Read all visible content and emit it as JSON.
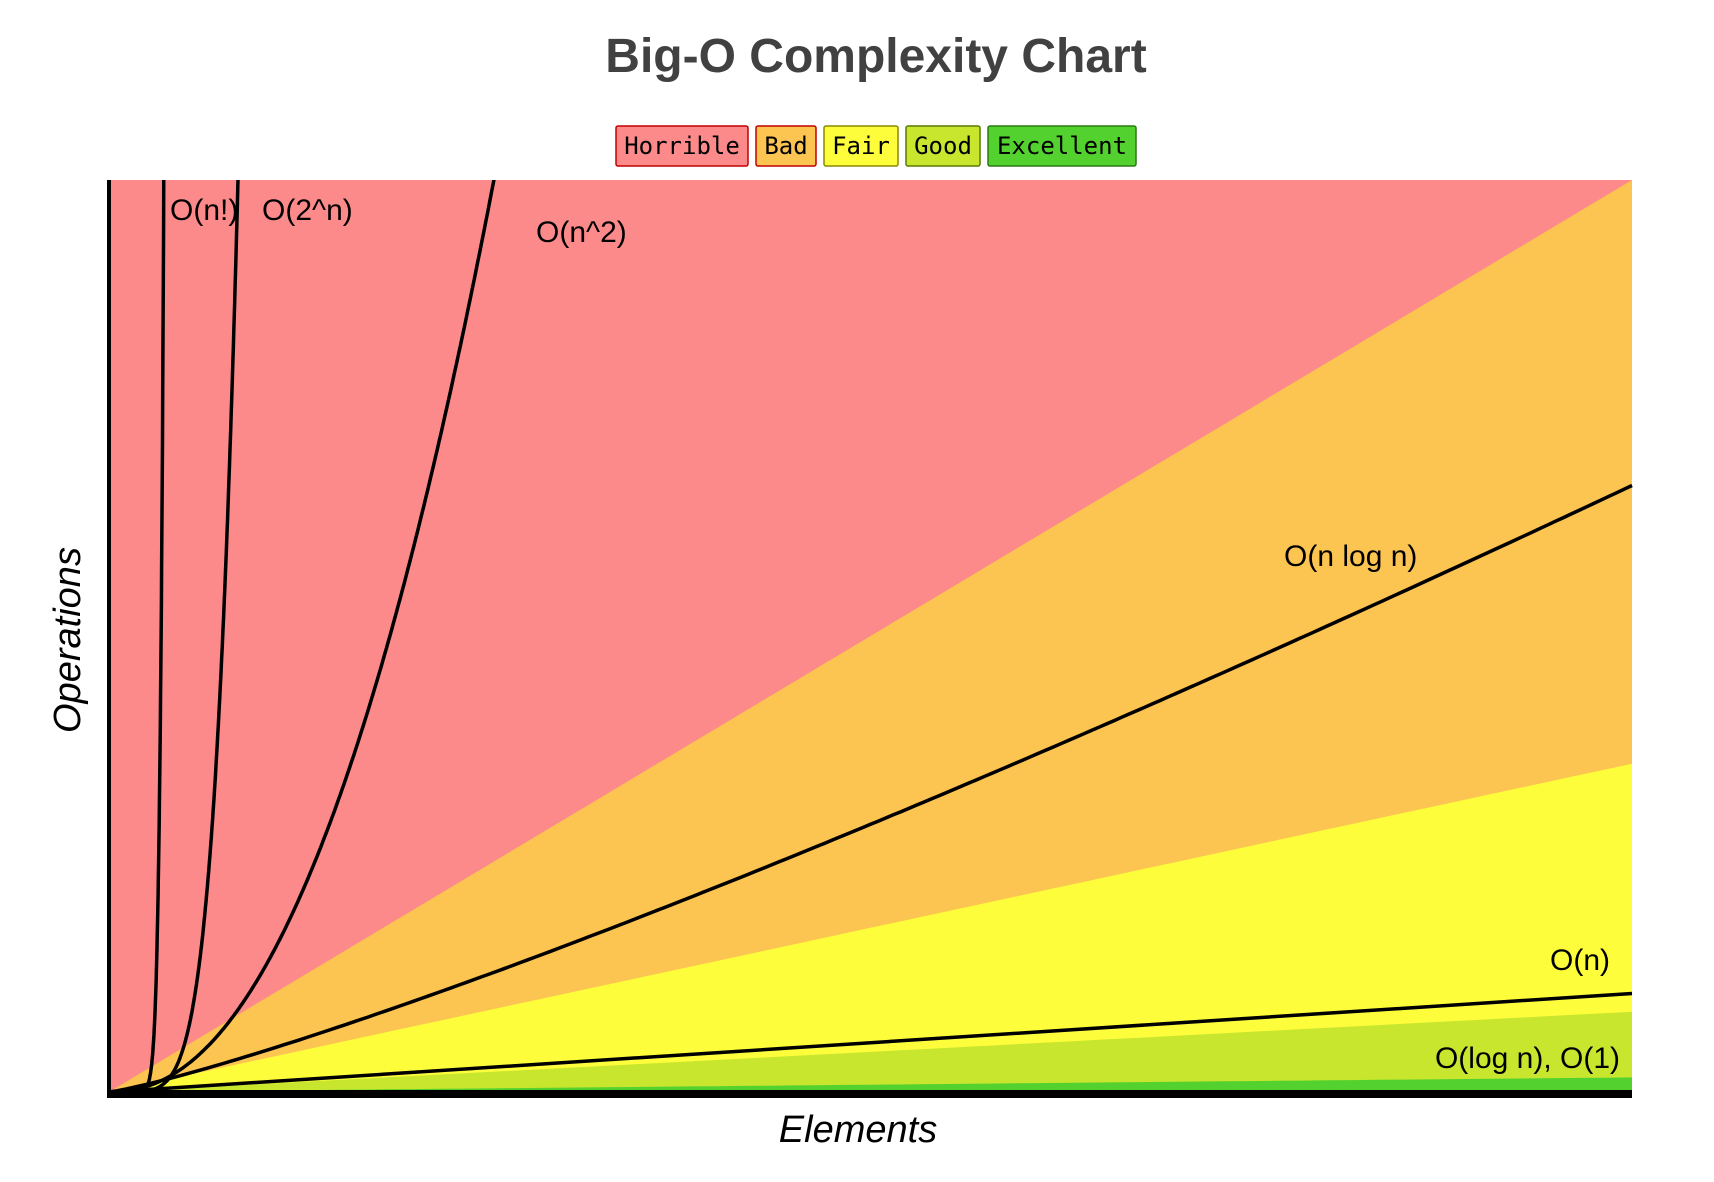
{
  "chart_data": {
    "type": "line",
    "title": "Big-O Complexity Chart",
    "xlabel": "Elements",
    "ylabel": "Operations",
    "legend": {
      "placement": "top-center",
      "items": [
        {
          "label": "Horrible",
          "color": "#fc8a8a",
          "border": "#c00000"
        },
        {
          "label": "Bad",
          "color": "#fcc451",
          "border": "#c00000"
        },
        {
          "label": "Fair",
          "color": "#fdfd3c",
          "border": "#8a8a00"
        },
        {
          "label": "Good",
          "color": "#c8e62e",
          "border": "#5a7a00"
        },
        {
          "label": "Excellent",
          "color": "#53d12e",
          "border": "#2a7a10"
        }
      ]
    },
    "xlim": [
      0,
      100
    ],
    "ylim": [
      0,
      1000
    ],
    "grid": false,
    "regions": [
      {
        "name": "Horrible",
        "color": "#fc8a8a"
      },
      {
        "name": "Bad",
        "color": "#fcc451"
      },
      {
        "name": "Fair",
        "color": "#fdfd3c"
      },
      {
        "name": "Good",
        "color": "#c8e62e"
      },
      {
        "name": "Excellent",
        "color": "#53d12e"
      }
    ],
    "series": [
      {
        "name": "O(n!)",
        "key": "fact",
        "label": "O(n!)"
      },
      {
        "name": "O(2^n)",
        "key": "exp",
        "label": "O(2^n)"
      },
      {
        "name": "O(n^2)",
        "key": "sq",
        "label": "O(n^2)"
      },
      {
        "name": "O(n log n)",
        "key": "nlogn",
        "label": "O(n log n)"
      },
      {
        "name": "O(n)",
        "key": "lin",
        "label": "O(n)"
      },
      {
        "name": "O(log n), O(1)",
        "key": "logn",
        "label": "O(log n), O(1)"
      }
    ]
  }
}
